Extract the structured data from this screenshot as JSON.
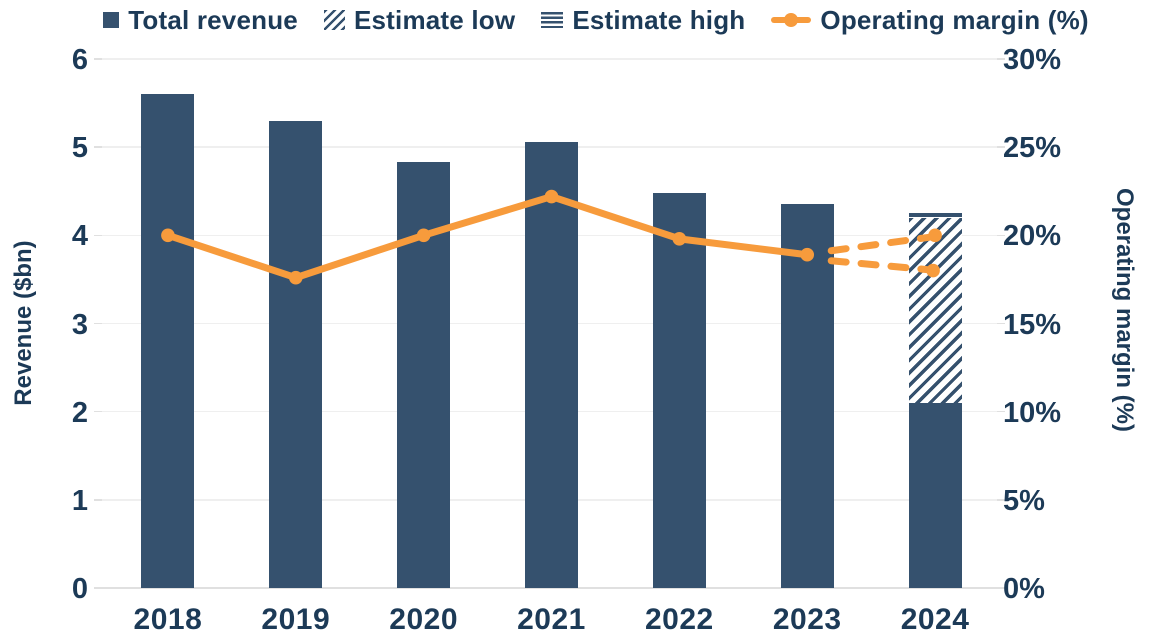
{
  "chart_data": {
    "type": "combo-bar-line",
    "categories": [
      "2018",
      "2019",
      "2020",
      "2021",
      "2022",
      "2023",
      "2024"
    ],
    "bar_series": {
      "name": "Total revenue",
      "axis": "left",
      "values": [
        5.6,
        5.3,
        4.83,
        5.06,
        4.48,
        4.36,
        2.1
      ]
    },
    "estimate_2024": {
      "category": "2024",
      "solid_base_top": 2.1,
      "estimate_low_top": 4.2,
      "estimate_high_top": 4.25
    },
    "line_series": {
      "name": "Operating margin (%)",
      "axis": "right",
      "values_pct": [
        20,
        17.6,
        20,
        22.2,
        19.8,
        18.9,
        null
      ],
      "forecast_2024": {
        "high_pct": 20,
        "low_pct": 18
      }
    },
    "left_axis": {
      "title": "Revenue ($bn)",
      "min": 0,
      "max": 6,
      "step": 1,
      "tick_labels": [
        "0",
        "1",
        "2",
        "3",
        "4",
        "5",
        "6"
      ]
    },
    "right_axis": {
      "title": "Operating margin (%)",
      "min": 0,
      "max": 30,
      "step": 5,
      "tick_labels": [
        "0%",
        "5%",
        "10%",
        "15%",
        "20%",
        "25%",
        "30%"
      ]
    },
    "legend": [
      {
        "label": "Total revenue",
        "swatch": "solid-square"
      },
      {
        "label": "Estimate low",
        "swatch": "diagonal-hatch"
      },
      {
        "label": "Estimate high",
        "swatch": "horizontal-lines"
      },
      {
        "label": "Operating margin (%)",
        "swatch": "line-marker"
      }
    ],
    "layout_hints": {
      "grid": "horizontal-only",
      "legend_position": "top-center",
      "bars_on_left_axis": true,
      "line_on_right_axis": true,
      "forecast_style": "dashed-split-high-low"
    },
    "colors": {
      "navy": "#35516E",
      "orange": "#F79B3C",
      "text": "#1C3A57",
      "gridline": "#EFEFEF",
      "baseline": "#E0E0E0"
    }
  }
}
